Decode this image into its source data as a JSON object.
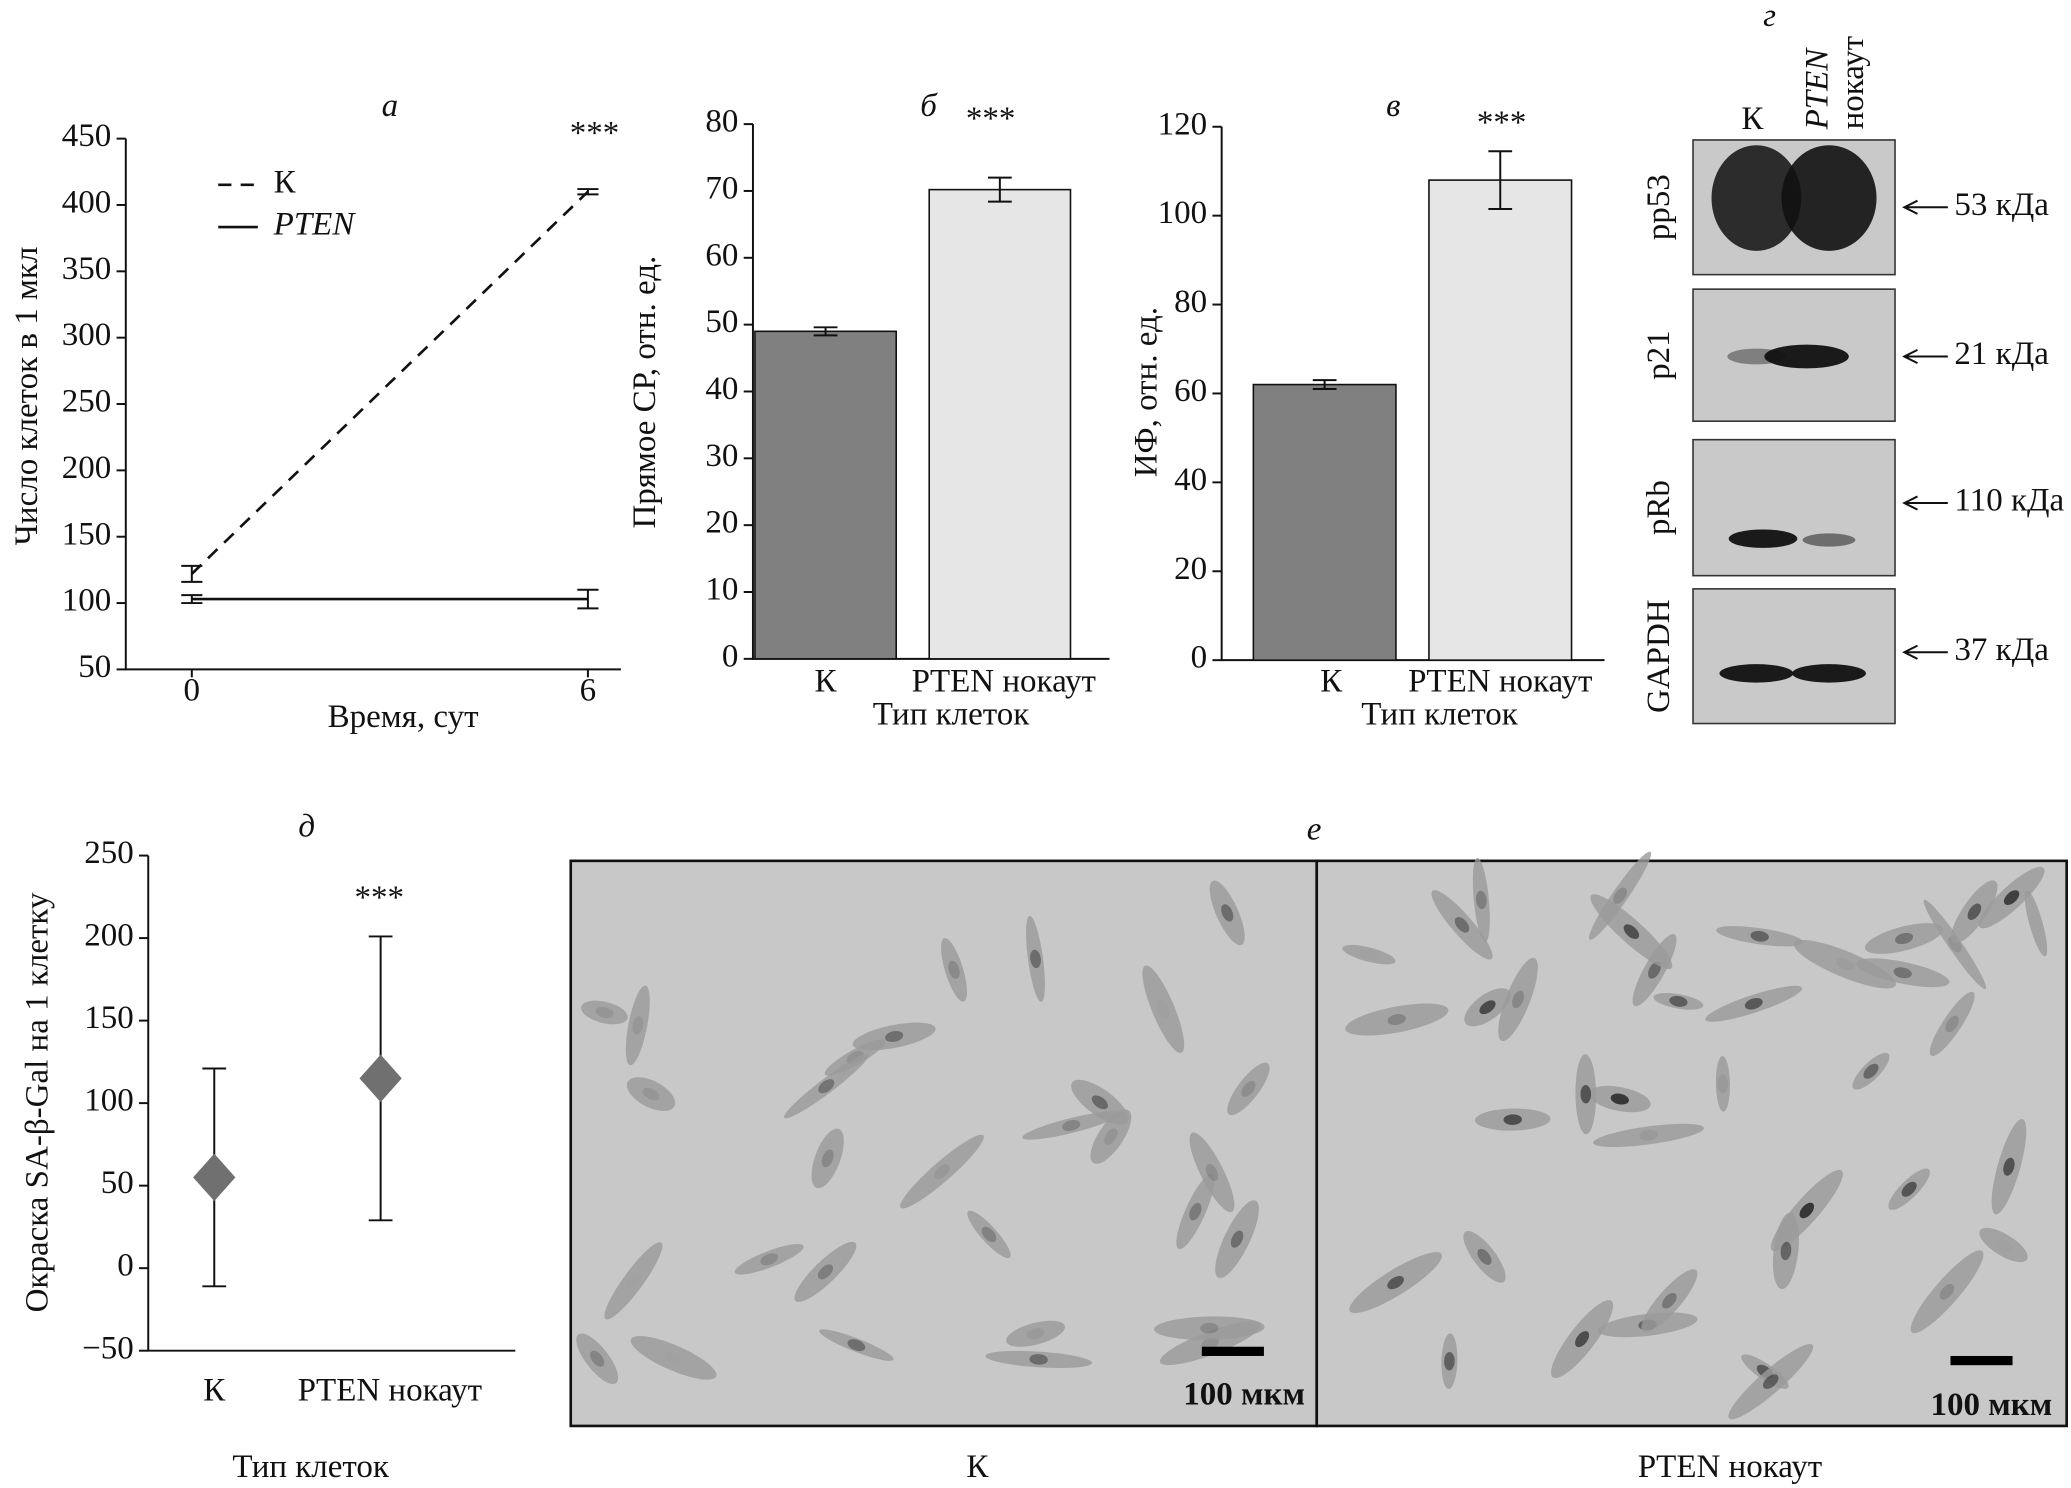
{
  "chart_data": [
    {
      "type": "line",
      "title": "а",
      "annotation": "***",
      "x_label": "Время, сут",
      "y_label": "Число клеток в 1 мкл",
      "x": [
        0,
        6
      ],
      "xlim": [
        -1,
        6.5
      ],
      "xticks": [
        0,
        6
      ],
      "ylim": [
        50,
        450
      ],
      "yticks": [
        50,
        100,
        150,
        200,
        250,
        300,
        350,
        400,
        450
      ],
      "legend": "upper left",
      "series": [
        {
          "name": "К",
          "color": "#111111",
          "line_style": "dashed",
          "values": [
            122,
            410
          ],
          "errors": [
            6,
            2
          ]
        },
        {
          "name": "PTEN",
          "color": "#111111",
          "line_style": "solid",
          "values": [
            103,
            103
          ],
          "errors": [
            3,
            7
          ]
        }
      ]
    },
    {
      "type": "bar",
      "title": "б",
      "annotation": "***",
      "x_label": "Тип клеток",
      "y_label": "Прямое СР, отн. ед.",
      "categories": [
        "К",
        "PTEN нокаут"
      ],
      "values": [
        49,
        70.2
      ],
      "errors": [
        0.6,
        1.8
      ],
      "colors": [
        "#808080",
        "#e6e6e6"
      ],
      "ylim": [
        0,
        80
      ],
      "yticks": [
        0,
        10,
        20,
        30,
        40,
        50,
        60,
        70,
        80
      ]
    },
    {
      "type": "bar",
      "title": "в",
      "annotation": "***",
      "x_label": "Тип клеток",
      "y_label": "ИФ, отн. ед.",
      "categories": [
        "К",
        "PTEN нокаут"
      ],
      "values": [
        62,
        108
      ],
      "errors": [
        1,
        6.5
      ],
      "colors": [
        "#808080",
        "#e6e6e6"
      ],
      "ylim": [
        0,
        120
      ],
      "yticks": [
        0,
        20,
        40,
        60,
        80,
        100,
        120
      ]
    },
    {
      "type": "point",
      "title": "д",
      "annotation": "***",
      "x_label": "Тип клеток",
      "y_label": "Окраска SA-β-Gal на 1 клетку",
      "categories": [
        "К",
        "PTEN нокаут"
      ],
      "values": [
        55,
        115
      ],
      "errors": [
        66,
        86
      ],
      "color": "#707070",
      "ylim": [
        -50,
        250
      ],
      "yticks": [
        {
          "value": -50,
          "label": "−50"
        },
        0,
        50,
        100,
        150,
        200,
        250
      ]
    }
  ],
  "blot": {
    "title": "г",
    "lane_labels": [
      "К",
      "PTEN",
      "нокаут"
    ],
    "rows": [
      {
        "label": "pp53",
        "size": "53 кДа"
      },
      {
        "label": "p21",
        "size": "21 кДа"
      },
      {
        "label": "pRb",
        "size": "110 кДа"
      },
      {
        "label": "GAPDH",
        "size": "37 кДа"
      }
    ]
  },
  "micrographs": {
    "title": "е",
    "panels": [
      {
        "caption": "К",
        "scale_bar": "100 мкм"
      },
      {
        "caption": "PTEN нокаут",
        "scale_bar": "100 мкм"
      }
    ]
  }
}
